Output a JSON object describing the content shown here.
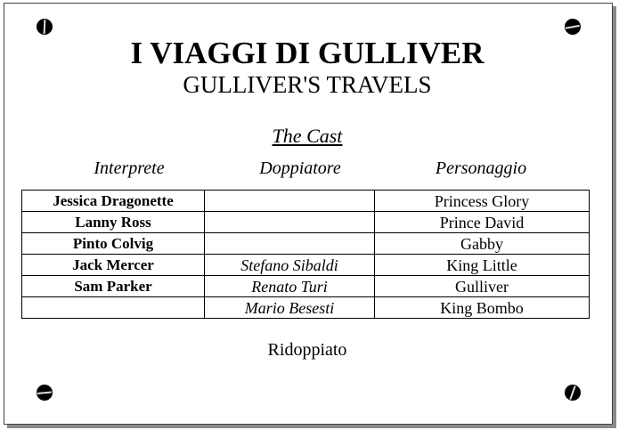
{
  "title": "I VIAGGI DI GULLIVER",
  "subtitle": "GULLIVER'S TRAVELS",
  "cast_heading": "The Cast",
  "headers": {
    "actor": "Interprete",
    "dubber": "Doppiatore",
    "character": "Personaggio"
  },
  "rows": [
    {
      "actor": "Jessica Dragonette",
      "dubber": "",
      "character": "Princess Glory"
    },
    {
      "actor": "Lanny Ross",
      "dubber": "",
      "character": "Prince David"
    },
    {
      "actor": "Pinto Colvig",
      "dubber": "",
      "character": "Gabby"
    },
    {
      "actor": "Jack Mercer",
      "dubber": "Stefano Sibaldi",
      "character": "King Little"
    },
    {
      "actor": "Sam Parker",
      "dubber": "Renato Turi",
      "character": "Gulliver"
    },
    {
      "actor": "",
      "dubber": "Mario Besesti",
      "character": "King Bombo"
    }
  ],
  "footer": "Ridoppiato",
  "icons": [
    "screw-icon"
  ]
}
